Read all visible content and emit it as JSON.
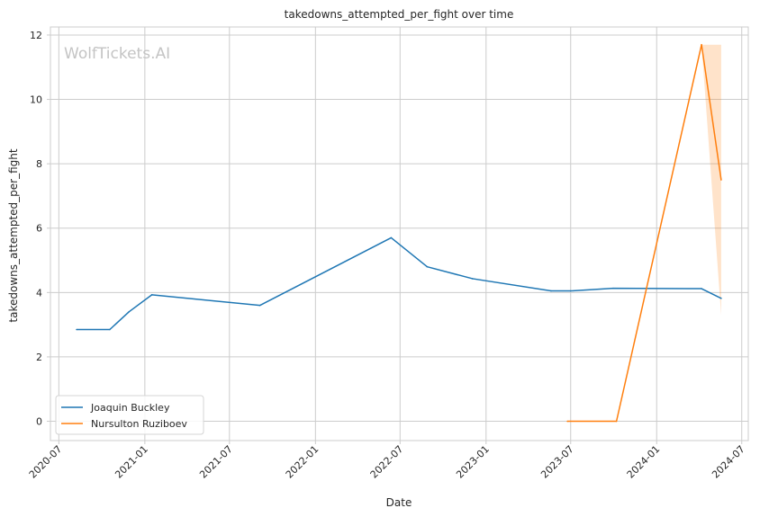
{
  "watermark": "WolfTickets.AI",
  "chart_data": {
    "type": "line",
    "title": "takedowns_attempted_per_fight over time",
    "xlabel": "Date",
    "ylabel": "takedowns_attempted_per_fight",
    "x_axis": {
      "type": "date",
      "ticks": [
        "2020-07",
        "2021-01",
        "2021-07",
        "2022-01",
        "2022-07",
        "2023-01",
        "2023-07",
        "2024-01",
        "2024-07"
      ],
      "range": [
        "2020-06-13",
        "2024-07-15"
      ]
    },
    "y_axis": {
      "ticks": [
        0,
        2,
        4,
        6,
        8,
        10,
        12
      ],
      "range": [
        -0.6,
        12.25
      ]
    },
    "grid": true,
    "legend_placement": "lower-left",
    "series": [
      {
        "name": "Joaquin Buckley",
        "color": "#1f77b4",
        "points": [
          {
            "x": "2020-08-08",
            "y": 2.85
          },
          {
            "x": "2020-10-18",
            "y": 2.85
          },
          {
            "x": "2020-11-28",
            "y": 3.4
          },
          {
            "x": "2021-01-16",
            "y": 3.93
          },
          {
            "x": "2021-09-04",
            "y": 3.6
          },
          {
            "x": "2022-06-12",
            "y": 5.7
          },
          {
            "x": "2022-08-28",
            "y": 4.8
          },
          {
            "x": "2022-12-03",
            "y": 4.43
          },
          {
            "x": "2023-05-20",
            "y": 4.05
          },
          {
            "x": "2023-07-01",
            "y": 4.05
          },
          {
            "x": "2023-09-30",
            "y": 4.13
          },
          {
            "x": "2024-04-06",
            "y": 4.12
          },
          {
            "x": "2024-05-18",
            "y": 3.82
          }
        ],
        "band": null
      },
      {
        "name": "Nursulton Ruziboev",
        "color": "#ff7f0e",
        "points": [
          {
            "x": "2023-06-24",
            "y": 0.0
          },
          {
            "x": "2023-10-07",
            "y": 0.0
          },
          {
            "x": "2024-04-06",
            "y": 11.7
          },
          {
            "x": "2024-05-18",
            "y": 7.5
          }
        ],
        "band": [
          {
            "x": "2024-04-06",
            "lower": 11.7,
            "upper": 11.7
          },
          {
            "x": "2024-05-18",
            "lower": 3.3,
            "upper": 11.7
          }
        ]
      }
    ]
  }
}
